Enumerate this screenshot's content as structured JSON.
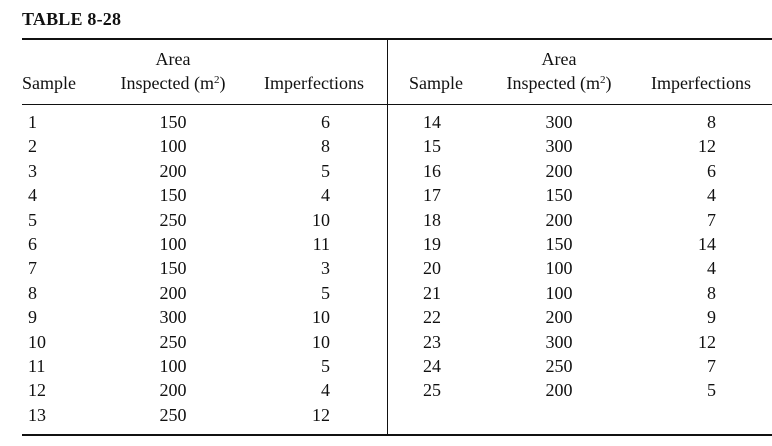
{
  "title": "TABLE 8-28",
  "headers": {
    "sample": "Sample",
    "area_line1": "Area",
    "area_line2": "Inspected (m",
    "area_sup": "2",
    "area_close": ")",
    "imperfections": "Imperfections"
  },
  "left_rows": [
    {
      "sample": "1",
      "area": "150",
      "imperfections": "6"
    },
    {
      "sample": "2",
      "area": "100",
      "imperfections": "8"
    },
    {
      "sample": "3",
      "area": "200",
      "imperfections": "5"
    },
    {
      "sample": "4",
      "area": "150",
      "imperfections": "4"
    },
    {
      "sample": "5",
      "area": "250",
      "imperfections": "10"
    },
    {
      "sample": "6",
      "area": "100",
      "imperfections": "11"
    },
    {
      "sample": "7",
      "area": "150",
      "imperfections": "3"
    },
    {
      "sample": "8",
      "area": "200",
      "imperfections": "5"
    },
    {
      "sample": "9",
      "area": "300",
      "imperfections": "10"
    },
    {
      "sample": "10",
      "area": "250",
      "imperfections": "10"
    },
    {
      "sample": "11",
      "area": "100",
      "imperfections": "5"
    },
    {
      "sample": "12",
      "area": "200",
      "imperfections": "4"
    },
    {
      "sample": "13",
      "area": "250",
      "imperfections": "12"
    }
  ],
  "right_rows": [
    {
      "sample": "14",
      "area": "300",
      "imperfections": "8"
    },
    {
      "sample": "15",
      "area": "300",
      "imperfections": "12"
    },
    {
      "sample": "16",
      "area": "200",
      "imperfections": "6"
    },
    {
      "sample": "17",
      "area": "150",
      "imperfections": "4"
    },
    {
      "sample": "18",
      "area": "200",
      "imperfections": "7"
    },
    {
      "sample": "19",
      "area": "150",
      "imperfections": "14"
    },
    {
      "sample": "20",
      "area": "100",
      "imperfections": "4"
    },
    {
      "sample": "21",
      "area": "100",
      "imperfections": "8"
    },
    {
      "sample": "22",
      "area": "200",
      "imperfections": "9"
    },
    {
      "sample": "23",
      "area": "300",
      "imperfections": "12"
    },
    {
      "sample": "24",
      "area": "250",
      "imperfections": "7"
    },
    {
      "sample": "25",
      "area": "200",
      "imperfections": "5"
    }
  ]
}
